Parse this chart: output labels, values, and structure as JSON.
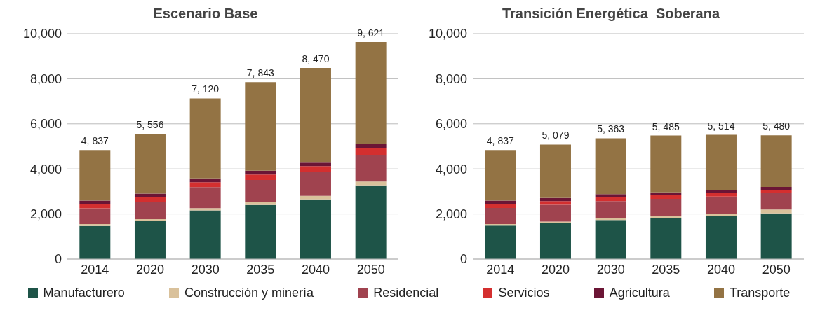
{
  "chart_data": [
    {
      "type": "bar",
      "title": "Escenario Base",
      "stacked": true,
      "categories": [
        "2014",
        "2020",
        "2030",
        "2035",
        "2040",
        "2050"
      ],
      "ylim": [
        0,
        10000
      ],
      "yticks": [
        0,
        {
          "value": 2000,
          "label": "2,000"
        },
        {
          "value": 4000,
          "label": "4,000"
        },
        {
          "value": 6000,
          "label": "6,000"
        },
        {
          "value": 8000,
          "label": "8,000"
        },
        {
          "value": 10000,
          "label": "10,000"
        }
      ],
      "grid": "y",
      "legend": "bottom",
      "totals": [
        "4, 837",
        "5, 556",
        "7, 120",
        "7, 843",
        "8, 470",
        "9, 621"
      ],
      "series": [
        {
          "name": "Manufacturero",
          "color": "#1e5448",
          "values": [
            1470,
            1700,
            2160,
            2400,
            2650,
            3270
          ]
        },
        {
          "name": "Construcción y minería",
          "color": "#d9c19b",
          "values": [
            80,
            70,
            100,
            120,
            150,
            170
          ]
        },
        {
          "name": "Residencial",
          "color": "#a0434f",
          "values": [
            700,
            770,
            930,
            990,
            1050,
            1180
          ]
        },
        {
          "name": "Servicios",
          "color": "#d42f2f",
          "values": [
            170,
            200,
            220,
            240,
            270,
            290
          ]
        },
        {
          "name": "Agricultura",
          "color": "#6b1535",
          "values": [
            170,
            160,
            170,
            170,
            160,
            180
          ]
        },
        {
          "name": "Transporte",
          "color": "#937344",
          "values": [
            2250,
            2650,
            3550,
            3930,
            4200,
            4540
          ]
        }
      ]
    },
    {
      "type": "bar",
      "title": "Transición Energética  Soberana",
      "stacked": true,
      "categories": [
        "2014",
        "2020",
        "2030",
        "2035",
        "2040",
        "2050"
      ],
      "ylim": [
        0,
        10000
      ],
      "yticks": [
        0,
        {
          "value": 2000,
          "label": "2,000"
        },
        {
          "value": 4000,
          "label": "4,000"
        },
        {
          "value": 6000,
          "label": "6,000"
        },
        {
          "value": 8000,
          "label": "8,000"
        },
        {
          "value": 10000,
          "label": "10,000"
        }
      ],
      "grid": "y",
      "totals": [
        "4, 837",
        "5, 079",
        "5, 363",
        "5, 485",
        "5, 514",
        "5, 480"
      ],
      "series": [
        {
          "color": "#1e5448",
          "values": [
            1480,
            1590,
            1730,
            1810,
            1900,
            2030
          ]
        },
        {
          "color": "#d9c19b",
          "values": [
            70,
            70,
            70,
            100,
            100,
            170
          ]
        },
        {
          "color": "#a0434f",
          "values": [
            720,
            750,
            770,
            760,
            770,
            730
          ]
        },
        {
          "color": "#d42f2f",
          "values": [
            170,
            160,
            170,
            160,
            150,
            140
          ]
        },
        {
          "color": "#6b1535",
          "values": [
            150,
            140,
            140,
            130,
            120,
            130
          ]
        },
        {
          "color": "#937344",
          "values": [
            2250,
            2370,
            2480,
            2520,
            2470,
            2290
          ]
        }
      ]
    }
  ]
}
